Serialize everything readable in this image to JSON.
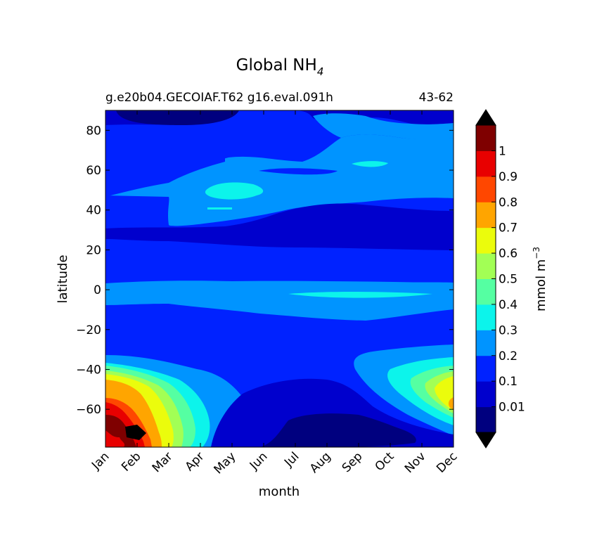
{
  "chart_data": {
    "type": "contourf",
    "title_main": "Global NH",
    "title_sub": "4",
    "left_label": "g.e20b04.GECOIAF.T62 g16.eval.091h",
    "right_label": "43-62",
    "xlabel": "month",
    "ylabel": "latitude",
    "x_tick_labels": [
      "Jan",
      "Feb",
      "Mar",
      "Apr",
      "May",
      "Jun",
      "Jul",
      "Aug",
      "Sep",
      "Oct",
      "Nov",
      "Dec"
    ],
    "x_range": [
      1,
      12
    ],
    "y_ticks": [
      "80",
      "60",
      "40",
      "20",
      "0",
      "−20",
      "−40",
      "−60"
    ],
    "y_range": [
      -79,
      90
    ],
    "colorbar": {
      "label": "mmol m",
      "label_exp": "−3",
      "extend": "both",
      "tick_labels": [
        "0.01",
        "0.1",
        "0.2",
        "0.3",
        "0.4",
        "0.5",
        "0.6",
        "0.7",
        "0.8",
        "0.9",
        "1"
      ],
      "colors": [
        "#00007f",
        "#0000cd",
        "#0022ff",
        "#0094ff",
        "#0cf4eb",
        "#55ffa2",
        "#a2ff55",
        "#ebfc0c",
        "#ffa500",
        "#ff4700",
        "#e80000",
        "#7f0000"
      ],
      "under_color": "#000000",
      "over_color": "#000000"
    },
    "background_level": "0.1-0.2",
    "regions": [
      {
        "name": "north-polar-low",
        "level": "0.01-0.1",
        "month_start": 1.6,
        "month_end": 4.9,
        "lat_start": 82,
        "lat_end": 90
      },
      {
        "name": "north-mid-lat-band",
        "level": "0.2-0.3",
        "month_start": 3.0,
        "month_end": 12.0,
        "lat_start": 35,
        "lat_end": 85
      },
      {
        "name": "north-mid-lat-patch",
        "level": "0.3-0.4",
        "month_start": 4.0,
        "month_end": 6.6,
        "lat_start": 44,
        "lat_end": 54
      },
      {
        "name": "equatorial-band",
        "level": "0.2-0.3",
        "month_start": 1.0,
        "month_end": 12.0,
        "lat_start": -8,
        "lat_end": 5
      },
      {
        "name": "southern-ocean-high",
        "level": "0.6-1.0",
        "month_start": 1.0,
        "month_end": 4.0,
        "lat_start": -79,
        "lat_end": -38
      },
      {
        "name": "southern-ocean-late",
        "level": "0.3-0.7",
        "month_start": 10.0,
        "month_end": 12.0,
        "lat_start": -64,
        "lat_end": -40
      },
      {
        "name": "antarctic-winter-low",
        "level": "0.01-0.1",
        "month_start": 6.3,
        "month_end": 10.0,
        "lat_start": -79,
        "lat_end": -63
      },
      {
        "name": "feb-peak",
        "level": ">1",
        "month_start": 1.8,
        "month_end": 2.4,
        "lat_start": -75,
        "lat_end": -69
      }
    ]
  }
}
